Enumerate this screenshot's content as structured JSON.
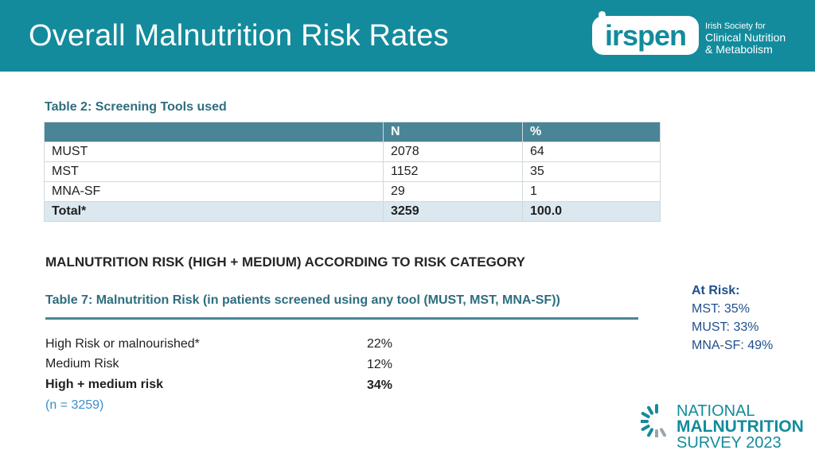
{
  "slide": {
    "title": "Overall Malnutrition Risk Rates"
  },
  "logo": {
    "mark_text": "irspen",
    "org_line1": "Irish Society for",
    "org_line2": "Clinical Nutrition",
    "org_line3": "& Metabolism"
  },
  "table2": {
    "caption": "Table 2:  Screening Tools used",
    "headers": [
      "",
      "N",
      "%"
    ],
    "rows": [
      [
        "MUST",
        "2078",
        "64"
      ],
      [
        "MST",
        "1152",
        "35"
      ],
      [
        "MNA-SF",
        "29",
        "1"
      ],
      [
        "Total*",
        "3259",
        "100.0"
      ]
    ]
  },
  "risk_section": {
    "heading": "MALNUTRITION RISK (HIGH + MEDIUM) ACCORDING TO RISK CATEGORY",
    "table7_caption": "Table 7: Malnutrition Risk (in patients screened using any tool (MUST, MST, MNA-SF))",
    "rows": [
      {
        "label": "High Risk or malnourished*",
        "value": "22%"
      },
      {
        "label": "Medium Risk",
        "value": "12%"
      },
      {
        "label": "High + medium risk",
        "value": "34%"
      }
    ],
    "n_note": "(n = 3259)"
  },
  "at_risk": {
    "heading": "At Risk:",
    "items": [
      "MST: 35%",
      "MUST: 33%",
      "MNA-SF: 49%"
    ]
  },
  "survey_logo": {
    "line1": "NATIONAL",
    "line2": "MALNUTRITION",
    "line3": "SURVEY 2023"
  },
  "colors": {
    "header_bg": "#138b9c",
    "table_header_bg": "#4a8597",
    "total_row_bg": "#dbe8ef",
    "caption": "#2e6d7f",
    "at_risk_text": "#1f4e8c"
  }
}
